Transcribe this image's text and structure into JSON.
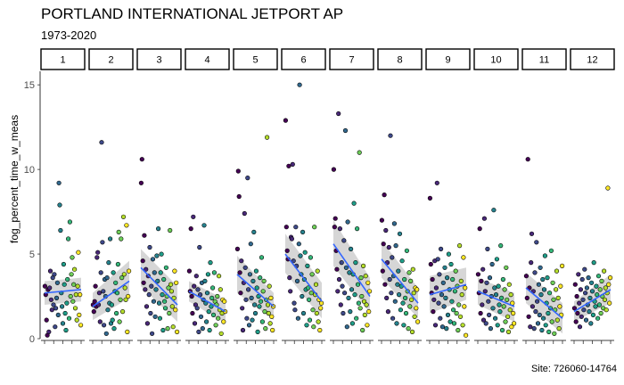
{
  "chart_data": {
    "type": "scatter",
    "title": "PORTLAND INTERNATIONAL JETPORT AP",
    "subtitle": "1973-2020",
    "caption": "Site: 726060-14764",
    "xlabel": "",
    "ylabel": "fog_percent_time_w_meas",
    "ylim": [
      0,
      15.8
    ],
    "yticks": [
      0,
      5,
      10,
      15
    ],
    "facets": [
      {
        "label": "1",
        "trend": [
          2.7,
          2.9
        ],
        "band": [
          [
            2.0,
            3.4
          ],
          [
            2.2,
            3.6
          ]
        ],
        "y": [
          3.1,
          2.6,
          1.1,
          0.2,
          2.9,
          0.4,
          3.0,
          4.0,
          2.3,
          1.7,
          3.6,
          2.0,
          3.8,
          0.7,
          1.8,
          2.4,
          3.3,
          1.4,
          9.2,
          7.9,
          6.4,
          2.7,
          1.9,
          0.9,
          4.4,
          3.2,
          1.5,
          0.5,
          2.1,
          3.5,
          5.9,
          1.2,
          6.9,
          2.5,
          3.8,
          4.8,
          2.2,
          3.2,
          4.1,
          1.8,
          2.6,
          1.1,
          3.1,
          5.1,
          1.4,
          2.6,
          0.8
        ]
      },
      {
        "label": "2",
        "trend": [
          1.9,
          3.4
        ],
        "band": [
          [
            1.1,
            2.7
          ],
          [
            2.4,
            4.6
          ]
        ],
        "y": [
          2.0,
          1.6,
          2.2,
          3.1,
          1.9,
          4.8,
          5.1,
          2.0,
          2.7,
          1.0,
          3.9,
          11.6,
          5.7,
          2.8,
          0.8,
          3.5,
          2.5,
          0.3,
          3.6,
          1.7,
          4.5,
          2.1,
          5.9,
          0.9,
          2.0,
          1.1,
          3.9,
          0.6,
          2.8,
          3.3,
          1.5,
          2.7,
          4.4,
          6.3,
          1.0,
          2.3,
          5.9,
          3.6,
          1.6,
          7.2,
          3.8,
          3.0,
          2.3,
          6.7,
          0.4,
          2.5,
          4.0
        ]
      },
      {
        "label": "3",
        "trend": [
          4.2,
          2.0
        ],
        "band": [
          [
            3.1,
            5.3
          ],
          [
            1.0,
            3.1
          ]
        ],
        "y": [
          9.2,
          10.6,
          4.6,
          3.3,
          6.1,
          2.9,
          4.1,
          1.9,
          0.9,
          3.7,
          2.6,
          5.4,
          1.5,
          3.1,
          0.3,
          4.7,
          2.2,
          3.9,
          1.3,
          2.9,
          4.9,
          3.4,
          6.5,
          2.1,
          1.2,
          3.9,
          5.0,
          2.6,
          0.5,
          3.5,
          2.2,
          1.8,
          4.2,
          2.5,
          0.6,
          3.0,
          1.5,
          6.4,
          3.2,
          2.8,
          1.9,
          0.7,
          2.4,
          4.0,
          1.7,
          3.3,
          0.4
        ]
      },
      {
        "label": "4",
        "trend": [
          2.8,
          1.6
        ],
        "band": [
          [
            2.2,
            3.4
          ],
          [
            0.9,
            2.3
          ]
        ],
        "y": [
          4.0,
          2.8,
          6.5,
          2.5,
          1.5,
          7.2,
          3.1,
          0.9,
          2.0,
          3.7,
          1.8,
          2.9,
          0.4,
          5.4,
          2.6,
          1.3,
          3.3,
          0.6,
          2.3,
          6.7,
          3.4,
          2.1,
          1.0,
          2.7,
          3.8,
          1.6,
          0.5,
          4.5,
          1.9,
          2.4,
          3.0,
          1.4,
          3.9,
          2.2,
          0.8,
          2.0,
          2.5,
          1.2,
          3.7,
          1.7,
          2.9,
          0.3,
          1.5,
          2.3,
          1.0,
          2.2,
          1.6
        ]
      },
      {
        "label": "5",
        "trend": [
          3.8,
          1.9
        ],
        "band": [
          [
            2.7,
            4.9
          ],
          [
            1.1,
            2.7
          ]
        ],
        "y": [
          5.3,
          9.9,
          8.4,
          3.9,
          2.7,
          4.6,
          1.8,
          0.5,
          3.3,
          7.4,
          4.2,
          2.3,
          1.2,
          9.5,
          2.9,
          0.8,
          3.8,
          5.6,
          2.4,
          1.1,
          3.4,
          6.3,
          2.0,
          1.5,
          4.0,
          3.0,
          0.4,
          2.5,
          1.9,
          3.6,
          2.2,
          4.8,
          1.0,
          2.8,
          3.4,
          1.6,
          0.6,
          2.3,
          11.9,
          2.0,
          1.5,
          3.1,
          0.9,
          2.4,
          1.3,
          0.5,
          1.9
        ]
      },
      {
        "label": "6",
        "trend": [
          5.0,
          2.2
        ],
        "band": [
          [
            3.9,
            6.2
          ],
          [
            1.2,
            3.3
          ]
        ],
        "y": [
          12.9,
          6.6,
          5.2,
          4.7,
          10.2,
          3.6,
          2.8,
          6.0,
          5.9,
          10.3,
          4.6,
          2.1,
          1.7,
          6.6,
          4.3,
          3.4,
          1.2,
          5.6,
          15.0,
          4.9,
          3.8,
          2.5,
          6.3,
          1.5,
          3.5,
          5.1,
          2.9,
          0.8,
          4.3,
          3.0,
          2.3,
          1.1,
          4.8,
          2.7,
          3.8,
          1.7,
          0.7,
          6.6,
          2.6,
          3.2,
          1.5,
          4.0,
          1.0,
          2.3,
          0.5,
          1.8,
          2.1
        ]
      },
      {
        "label": "7",
        "trend": [
          5.6,
          2.5
        ],
        "band": [
          [
            4.3,
            7.0
          ],
          [
            1.5,
            3.6
          ]
        ],
        "y": [
          10.0,
          6.6,
          7.1,
          5.2,
          4.1,
          2.8,
          13.3,
          3.5,
          6.5,
          2.0,
          4.5,
          3.1,
          1.5,
          5.8,
          2.7,
          12.3,
          4.2,
          0.7,
          6.9,
          2.4,
          3.9,
          1.6,
          5.3,
          2.9,
          0.9,
          3.8,
          8.0,
          2.6,
          4.5,
          1.2,
          6.5,
          3.2,
          2.1,
          11.0,
          1.8,
          3.6,
          2.5,
          0.5,
          4.3,
          2.2,
          1.4,
          3.7,
          2.0,
          0.8,
          3.3,
          1.6,
          2.8
        ]
      },
      {
        "label": "8",
        "trend": [
          4.7,
          2.1
        ],
        "band": [
          [
            3.6,
            5.8
          ],
          [
            1.2,
            3.0
          ]
        ],
        "y": [
          7.0,
          4.0,
          5.6,
          8.5,
          3.2,
          6.4,
          2.4,
          4.5,
          1.6,
          5.4,
          3.5,
          12.0,
          2.7,
          4.8,
          1.2,
          3.7,
          6.8,
          2.2,
          5.5,
          0.9,
          3.2,
          4.0,
          2.6,
          6.2,
          1.7,
          3.1,
          4.6,
          2.1,
          0.8,
          3.5,
          2.4,
          1.5,
          5.2,
          2.8,
          0.6,
          3.9,
          1.9,
          3.4,
          2.3,
          0.4,
          4.1,
          2.7,
          1.3,
          3.0,
          1.8,
          2.9,
          1.0
        ]
      },
      {
        "label": "9",
        "trend": [
          2.6,
          3.2
        ],
        "band": [
          [
            1.5,
            3.7
          ],
          [
            2.3,
            4.2
          ]
        ],
        "y": [
          8.3,
          4.4,
          2.7,
          3.5,
          1.6,
          2.3,
          4.6,
          0.8,
          3.0,
          9.2,
          4.7,
          2.1,
          3.8,
          1.2,
          5.3,
          2.6,
          0.7,
          3.3,
          1.9,
          4.2,
          2.4,
          0.6,
          3.6,
          1.4,
          5.0,
          2.9,
          1.0,
          4.4,
          2.2,
          3.5,
          1.7,
          0.9,
          2.8,
          4.0,
          1.5,
          3.1,
          0.5,
          2.0,
          5.5,
          1.3,
          3.4,
          2.6,
          0.8,
          4.8,
          1.9,
          3.0,
          0.2
        ]
      },
      {
        "label": "10",
        "trend": [
          2.8,
          1.9
        ],
        "band": [
          [
            2.0,
            3.6
          ],
          [
            1.0,
            2.7
          ]
        ],
        "y": [
          3.8,
          2.7,
          6.5,
          1.5,
          3.4,
          2.0,
          4.1,
          1.1,
          7.1,
          2.8,
          0.9,
          3.3,
          5.3,
          2.2,
          1.4,
          3.6,
          0.6,
          2.5,
          4.4,
          1.8,
          7.6,
          3.0,
          1.2,
          2.6,
          4.7,
          0.8,
          3.1,
          2.0,
          1.6,
          5.5,
          2.4,
          0.5,
          3.5,
          1.9,
          2.9,
          1.0,
          4.2,
          2.3,
          1.3,
          0.4,
          3.2,
          1.7,
          2.6,
          0.7,
          2.1,
          1.5,
          0.9
        ]
      },
      {
        "label": "11",
        "trend": [
          3.0,
          1.2
        ],
        "band": [
          [
            2.1,
            3.9
          ],
          [
            0.3,
            2.1
          ]
        ],
        "y": [
          3.7,
          2.4,
          10.6,
          1.3,
          3.0,
          0.7,
          4.5,
          6.2,
          1.9,
          2.8,
          0.6,
          3.9,
          1.6,
          5.7,
          2.2,
          0.9,
          3.2,
          1.4,
          4.2,
          2.6,
          0.5,
          3.5,
          1.2,
          2.9,
          4.9,
          0.8,
          2.1,
          3.6,
          1.5,
          0.4,
          2.7,
          1.8,
          5.2,
          1.0,
          3.3,
          2.3,
          0.3,
          1.7,
          2.9,
          4.0,
          1.1,
          2.4,
          0.6,
          1.9,
          3.1,
          1.4,
          4.3
        ]
      },
      {
        "label": "12",
        "trend": [
          1.6,
          2.9
        ],
        "band": [
          [
            1.0,
            2.2
          ],
          [
            2.1,
            3.8
          ]
        ],
        "y": [
          1.8,
          3.2,
          1.0,
          2.5,
          1.5,
          3.8,
          2.1,
          0.7,
          2.9,
          1.3,
          3.5,
          2.3,
          1.7,
          4.1,
          2.7,
          1.1,
          3.0,
          2.0,
          3.6,
          1.6,
          2.4,
          0.9,
          3.3,
          2.8,
          1.4,
          4.5,
          2.2,
          1.9,
          3.1,
          2.6,
          1.2,
          3.7,
          2.0,
          2.9,
          1.5,
          3.4,
          2.5,
          1.8,
          4.0,
          2.3,
          3.0,
          1.7,
          2.7,
          8.9,
          3.2,
          2.1,
          3.6
        ]
      }
    ]
  }
}
